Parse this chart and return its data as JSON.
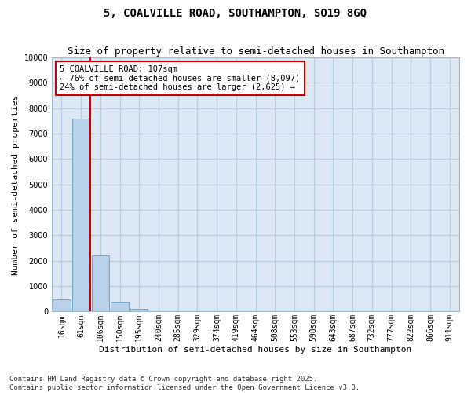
{
  "title": "5, COALVILLE ROAD, SOUTHAMPTON, SO19 8GQ",
  "subtitle": "Size of property relative to semi-detached houses in Southampton",
  "xlabel": "Distribution of semi-detached houses by size in Southampton",
  "ylabel": "Number of semi-detached properties",
  "categories": [
    "16sqm",
    "61sqm",
    "106sqm",
    "150sqm",
    "195sqm",
    "240sqm",
    "285sqm",
    "329sqm",
    "374sqm",
    "419sqm",
    "464sqm",
    "508sqm",
    "553sqm",
    "598sqm",
    "643sqm",
    "687sqm",
    "732sqm",
    "777sqm",
    "822sqm",
    "866sqm",
    "911sqm"
  ],
  "values": [
    480,
    7600,
    2200,
    380,
    120,
    0,
    0,
    0,
    0,
    0,
    0,
    0,
    0,
    0,
    0,
    0,
    0,
    0,
    0,
    0,
    0
  ],
  "bar_color": "#b8d0e8",
  "bar_edge_color": "#6a9ec0",
  "vline_color": "#cc0000",
  "vline_x": 1.5,
  "annotation_text": "5 COALVILLE ROAD: 107sqm\n← 76% of semi-detached houses are smaller (8,097)\n24% of semi-detached houses are larger (2,625) →",
  "annotation_box_color": "#ffffff",
  "annotation_box_edge": "#cc0000",
  "ylim": [
    0,
    10000
  ],
  "yticks": [
    0,
    1000,
    2000,
    3000,
    4000,
    5000,
    6000,
    7000,
    8000,
    9000,
    10000
  ],
  "footer": "Contains HM Land Registry data © Crown copyright and database right 2025.\nContains public sector information licensed under the Open Government Licence v3.0.",
  "background_color": "#ffffff",
  "plot_bg_color": "#dce8f4",
  "grid_color": "#b8ccdc",
  "title_fontsize": 10,
  "subtitle_fontsize": 9,
  "axis_label_fontsize": 8,
  "tick_fontsize": 7,
  "annotation_fontsize": 7.5,
  "footer_fontsize": 6.5
}
